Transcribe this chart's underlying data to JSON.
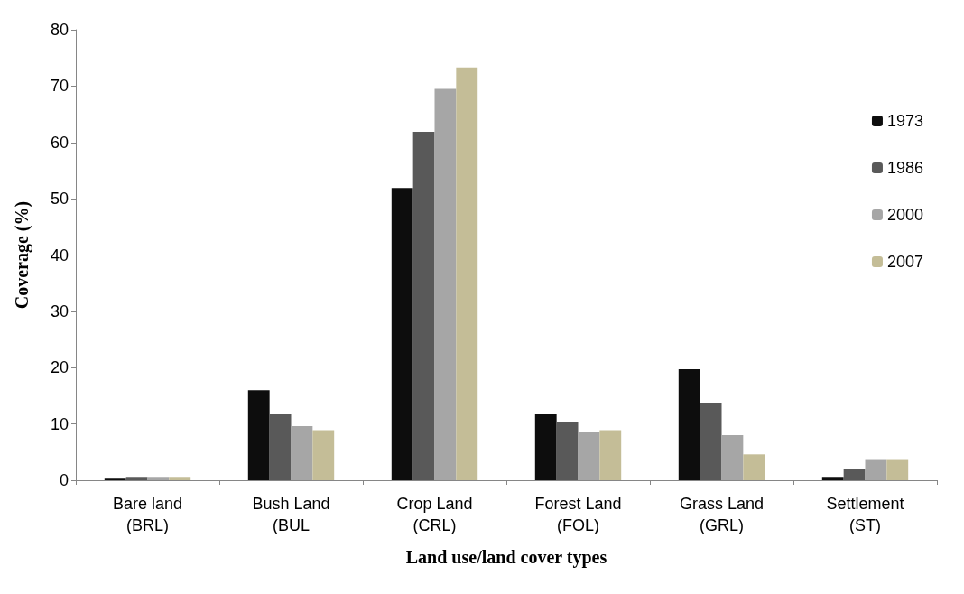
{
  "chart_data": {
    "type": "bar",
    "xlabel": "Land use/land cover types",
    "ylabel": "Coverage (%)",
    "categories": [
      "Bare land\n(BRL)",
      "Bush Land\n(BUL",
      "Crop Land\n(CRL)",
      "Forest Land\n(FOL)",
      "Grass Land\n(GRL)",
      "Settlement\n(ST)"
    ],
    "series": [
      {
        "name": "1973",
        "color": "#0d0d0d",
        "values": [
          0.3,
          16.0,
          51.9,
          11.7,
          19.7,
          0.6
        ]
      },
      {
        "name": "1986",
        "color": "#595959",
        "values": [
          0.6,
          11.7,
          61.9,
          10.3,
          13.8,
          2.0
        ]
      },
      {
        "name": "2000",
        "color": "#a6a6a6",
        "values": [
          0.6,
          9.6,
          69.5,
          8.6,
          8.0,
          3.6
        ]
      },
      {
        "name": "2007",
        "color": "#c4bd97",
        "values": [
          0.6,
          8.9,
          73.3,
          8.9,
          4.6,
          3.6
        ]
      }
    ],
    "ylim": [
      0,
      80
    ],
    "yticks": [
      0,
      10,
      20,
      30,
      40,
      50,
      60,
      70,
      80
    ],
    "grid": false,
    "legend": "right"
  }
}
